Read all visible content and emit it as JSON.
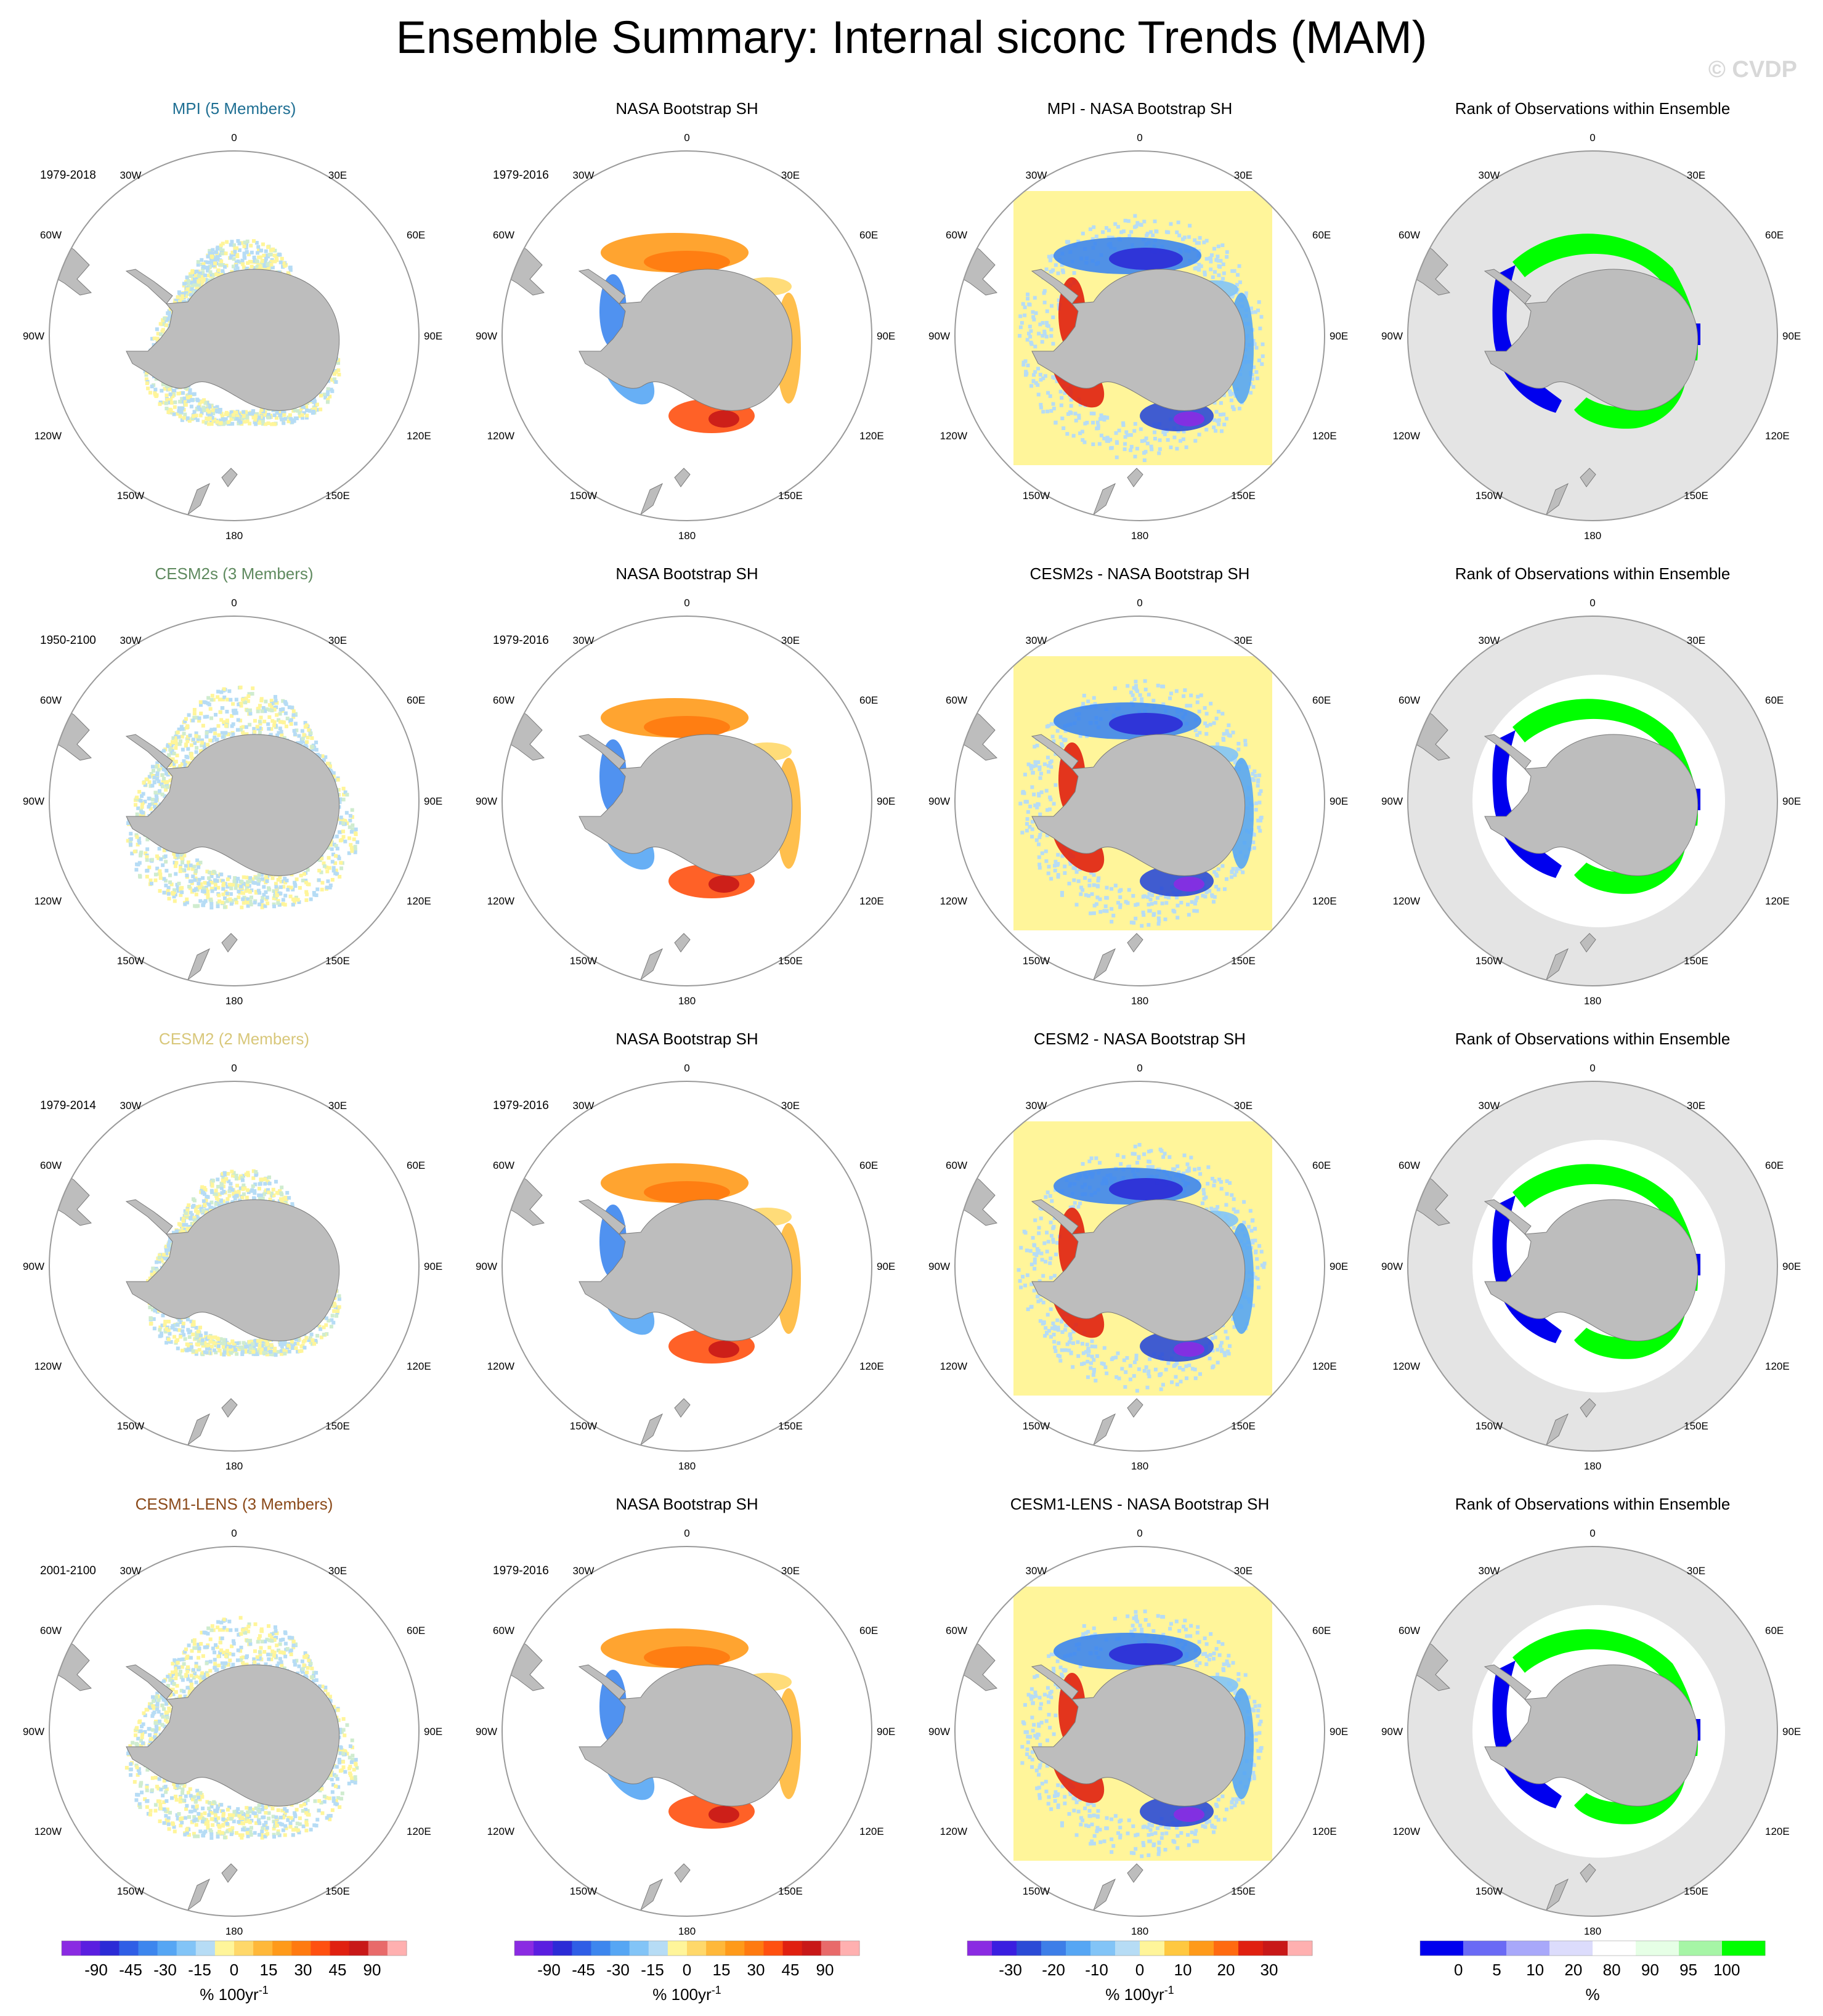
{
  "figure": {
    "title": "Ensemble Summary: Internal siconc Trends (MAM)",
    "watermark": "© CVDP"
  },
  "colors": {
    "land": "#bdbdbd",
    "disk_rank": "#e4e4e4",
    "ring": "#9a9a9a",
    "rank_blue": "#0000ee",
    "rank_green": "#00ff00",
    "neutral_yellow": "#fff59a"
  },
  "map_labels": {
    "top": "0",
    "bottom": "180",
    "tl": "30W",
    "tr": "30E",
    "ul": "60W",
    "ur": "60E",
    "ml": "90W",
    "mr": "90E",
    "ll": "120W",
    "lr": "120E",
    "bl": "150W",
    "br": "150E"
  },
  "chart_data": [
    {
      "type": "heatmap",
      "row": 0,
      "panels": [
        {
          "title": "MPI (5 Members)",
          "title_color": "#1f6f93",
          "period": "1979-2018",
          "kind": "model_trend"
        },
        {
          "title": "NASA Bootstrap SH",
          "title_color": "#000000",
          "period": "1979-2016",
          "kind": "obs_trend"
        },
        {
          "title": "MPI - NASA Bootstrap SH",
          "title_color": "#000000",
          "period": "",
          "kind": "difference"
        },
        {
          "title": "Rank of Observations within Ensemble",
          "title_color": "#000000",
          "period": "",
          "kind": "rank"
        }
      ]
    },
    {
      "type": "heatmap",
      "row": 1,
      "panels": [
        {
          "title": "CESM2s (3 Members)",
          "title_color": "#5f8a5f",
          "period": "1950-2100",
          "kind": "model_trend"
        },
        {
          "title": "NASA Bootstrap SH",
          "title_color": "#000000",
          "period": "1979-2016",
          "kind": "obs_trend"
        },
        {
          "title": "CESM2s - NASA Bootstrap SH",
          "title_color": "#000000",
          "period": "",
          "kind": "difference"
        },
        {
          "title": "Rank of Observations within Ensemble",
          "title_color": "#000000",
          "period": "",
          "kind": "rank"
        }
      ]
    },
    {
      "type": "heatmap",
      "row": 2,
      "panels": [
        {
          "title": "CESM2 (2 Members)",
          "title_color": "#d8c77a",
          "period": "1979-2014",
          "kind": "model_trend"
        },
        {
          "title": "NASA Bootstrap SH",
          "title_color": "#000000",
          "period": "1979-2016",
          "kind": "obs_trend"
        },
        {
          "title": "CESM2 - NASA Bootstrap SH",
          "title_color": "#000000",
          "period": "",
          "kind": "difference"
        },
        {
          "title": "Rank of Observations within Ensemble",
          "title_color": "#000000",
          "period": "",
          "kind": "rank"
        }
      ]
    },
    {
      "type": "heatmap",
      "row": 3,
      "panels": [
        {
          "title": "CESM1-LENS (3 Members)",
          "title_color": "#8b4a1a",
          "period": "2001-2100",
          "kind": "model_trend"
        },
        {
          "title": "NASA Bootstrap SH",
          "title_color": "#000000",
          "period": "1979-2016",
          "kind": "obs_trend"
        },
        {
          "title": "CESM1-LENS - NASA Bootstrap SH",
          "title_color": "#000000",
          "period": "",
          "kind": "difference"
        },
        {
          "title": "Rank of Observations within Ensemble",
          "title_color": "#000000",
          "period": "",
          "kind": "rank"
        }
      ]
    }
  ],
  "colorbars": [
    {
      "unit": "% 100yr",
      "unit_sup": "-1",
      "ticks": [
        "-90",
        "-45",
        "-30",
        "-15",
        "0",
        "15",
        "30",
        "45",
        "90"
      ],
      "colors": [
        "#8a2be2",
        "#5a1ee0",
        "#2b2bd6",
        "#2f5ee6",
        "#3d86ee",
        "#56a6f4",
        "#82c4f7",
        "#b6dcf5",
        "#fff59a",
        "#ffd86a",
        "#ffb83a",
        "#ff9a1a",
        "#ff7a10",
        "#ff5010",
        "#e02010",
        "#c81818",
        "#e86a6a",
        "#ffb0b0"
      ]
    },
    {
      "unit": "% 100yr",
      "unit_sup": "-1",
      "ticks": [
        "-90",
        "-45",
        "-30",
        "-15",
        "0",
        "15",
        "30",
        "45",
        "90"
      ],
      "colors": [
        "#8a2be2",
        "#5a1ee0",
        "#2b2bd6",
        "#2f5ee6",
        "#3d86ee",
        "#56a6f4",
        "#82c4f7",
        "#b6dcf5",
        "#fff59a",
        "#ffd86a",
        "#ffb83a",
        "#ff9a1a",
        "#ff7a10",
        "#ff5010",
        "#e02010",
        "#c81818",
        "#e86a6a",
        "#ffb0b0"
      ]
    },
    {
      "unit": "% 100yr",
      "unit_sup": "-1",
      "ticks": [
        "-30",
        "-20",
        "-10",
        "0",
        "10",
        "20",
        "30"
      ],
      "colors": [
        "#8a2be2",
        "#3a1ee0",
        "#2b4bd6",
        "#3d7ee8",
        "#56a6f4",
        "#82c4f7",
        "#b6dcf5",
        "#fff59a",
        "#ffc840",
        "#ff9a1a",
        "#ff6a10",
        "#e02010",
        "#c81818",
        "#ffb0b0"
      ]
    },
    {
      "unit": "%",
      "unit_sup": "",
      "ticks": [
        "0",
        "5",
        "10",
        "20",
        "80",
        "90",
        "95",
        "100"
      ],
      "colors": [
        "#0000ee",
        "#6a6af5",
        "#a8a8fa",
        "#dcdcfc",
        "#ffffff",
        "#e6ffe6",
        "#a6f5a6",
        "#00ff00"
      ]
    }
  ]
}
